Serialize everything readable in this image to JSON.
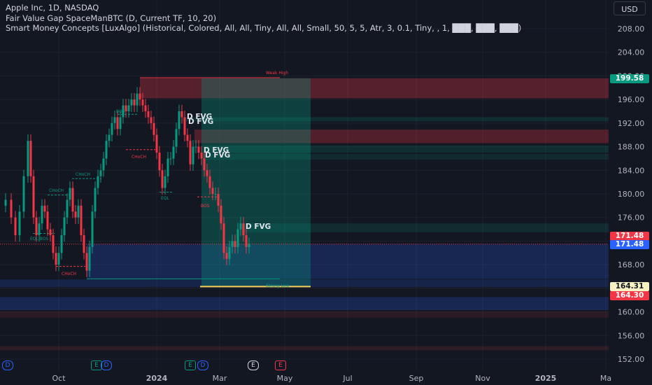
{
  "header": {
    "title_line": "Apple Inc, 1D, NASDAQ",
    "indicator_fvg": "Fair Value Gap SpaceManBTC (D, Current TF, 10, 20)",
    "indicator_smc": "Smart Money Concepts [LuxAlgo] (Historical, Colored, All, All, Tiny, All, All, Small, 50, 5, 5, Atr, 3, 0.1, Tiny, , 1, ███, ███, ███)"
  },
  "currency_button": {
    "label": "USD"
  },
  "colors": {
    "background": "#131722",
    "bull": "#089981",
    "bear": "#f23645",
    "accent_blue": "#2962ff",
    "highlight_yellow": "#f7d35a"
  },
  "price_axis": {
    "ticks": [
      "208.00",
      "204.00",
      "200.00",
      "196.00",
      "192.00",
      "188.00",
      "184.00",
      "180.00",
      "176.00",
      "172.00",
      "168.00",
      "164.00",
      "160.00",
      "156.00",
      "152.00"
    ],
    "tags": [
      {
        "label": "199.58",
        "bg": "#089981",
        "fg": "#ffffff"
      },
      {
        "label": "171.48",
        "bg": "#f23645",
        "fg": "#ffffff"
      },
      {
        "label": "171.48",
        "bg": "#2962ff",
        "fg": "#ffffff"
      },
      {
        "label": "164.31",
        "bg": "#f7f0c2",
        "fg": "#131722"
      },
      {
        "label": "164.30",
        "bg": "#f23645",
        "fg": "#ffffff"
      }
    ]
  },
  "time_axis": {
    "ticks": [
      "Oct",
      "2024",
      "Mar",
      "May",
      "Jul",
      "Sep",
      "Nov",
      "2025",
      "Ma"
    ]
  },
  "annotations": {
    "fvg_labels": [
      "D FVG",
      "D FVG",
      "D FVG",
      "D FVG",
      "D FVG"
    ],
    "smc_labels": [
      "EQL BOS",
      "CHoCH",
      "CHoCH",
      "CHoCH",
      "BOS",
      "CHoCH",
      "EQL",
      "BOS",
      "Weak High",
      "Strong Low"
    ]
  },
  "event_badges": [
    "D",
    "E",
    "D",
    "E",
    "D",
    "E",
    "E"
  ]
}
